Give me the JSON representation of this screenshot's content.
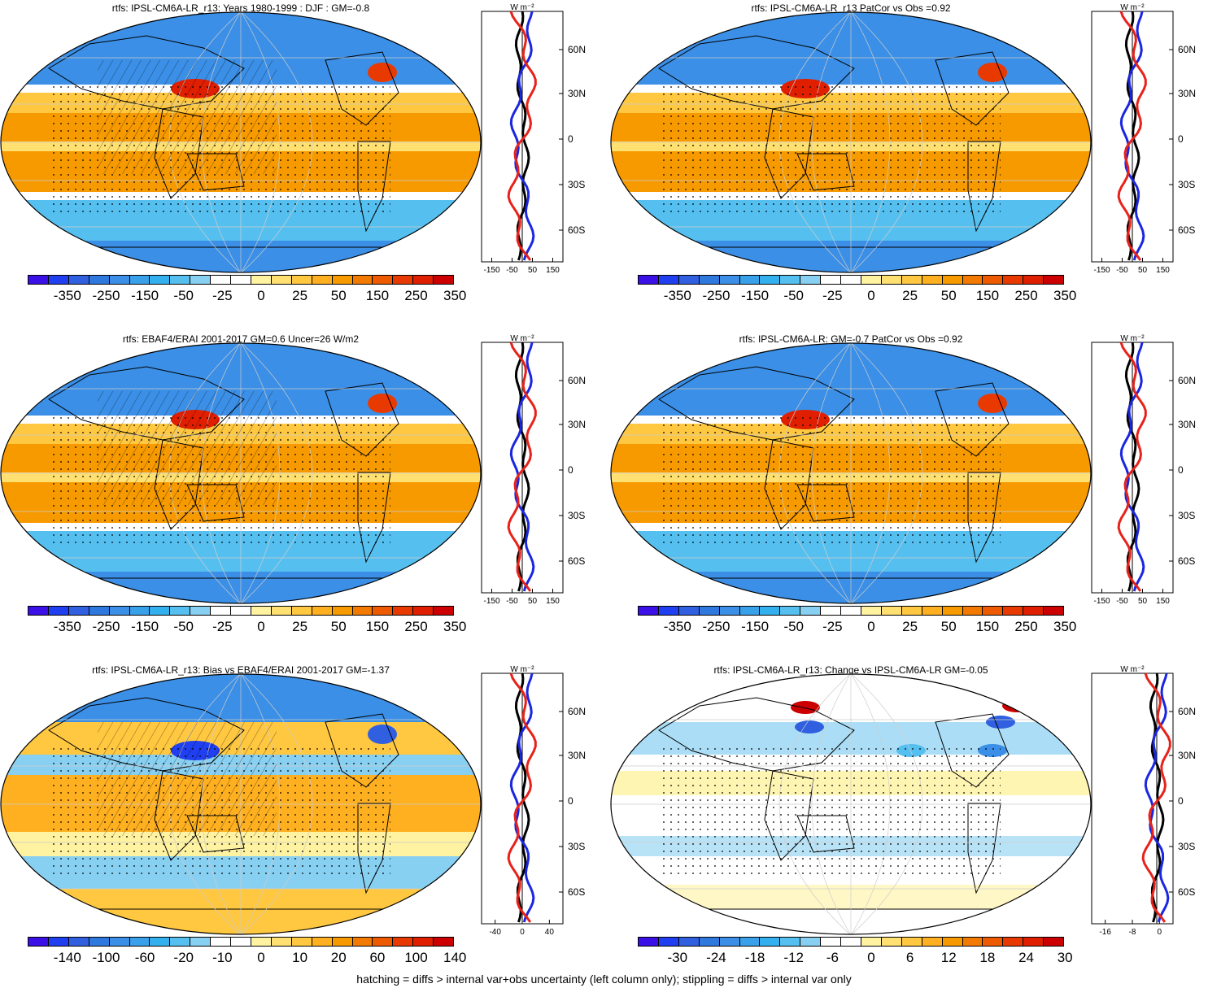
{
  "panels": [
    {
      "title": "rtfs: IPSL-CM6A-LR_r13: Years 1980-1999 : DJF : GM=-0.8",
      "variant": "model",
      "hatched": true,
      "zonal_ticks": [
        "-150",
        "-50",
        "50",
        "150"
      ],
      "zonal_kind": "full"
    },
    {
      "title": "rtfs: IPSL-CM6A-LR_r13 PatCor vs Obs =0.92",
      "variant": "model",
      "hatched": false,
      "zonal_ticks": [
        "-150",
        "-50",
        "50",
        "150"
      ],
      "zonal_kind": "full2"
    },
    {
      "title": "rtfs: EBAF4/ERAI 2001-2017 GM=0.6 Uncer=26 W/m2",
      "variant": "obs",
      "hatched": true,
      "zonal_ticks": [
        "-150",
        "-50",
        "50",
        "150"
      ],
      "zonal_kind": "full"
    },
    {
      "title": "rtfs: IPSL-CM6A-LR: GM=-0.7 PatCor vs Obs =0.92",
      "variant": "model",
      "hatched": false,
      "zonal_ticks": [
        "-150",
        "-50",
        "50",
        "150"
      ],
      "zonal_kind": "full2"
    },
    {
      "title": "rtfs: IPSL-CM6A-LR_r13: Bias vs EBAF4/ERAI 2001-2017 GM=-1.37",
      "variant": "bias",
      "hatched": true,
      "zonal_ticks": [
        "-40",
        "0",
        "40"
      ],
      "zonal_kind": "bias"
    },
    {
      "title": "rtfs: IPSL-CM6A-LR_r13: Change vs IPSL-CM6A-LR GM=-0.05",
      "variant": "change",
      "hatched": false,
      "zonal_ticks": [
        "-16",
        "-8",
        "0"
      ],
      "zonal_kind": "change"
    }
  ],
  "colorbars": [
    {
      "labels": [
        "-350",
        "-250",
        "-150",
        "-50",
        "-25",
        "0",
        "25",
        "50",
        "150",
        "250",
        "350"
      ]
    },
    {
      "labels": [
        "-350",
        "-250",
        "-150",
        "-50",
        "-25",
        "0",
        "25",
        "50",
        "150",
        "250",
        "350"
      ]
    },
    {
      "labels": [
        "-350",
        "-250",
        "-150",
        "-50",
        "-25",
        "0",
        "25",
        "50",
        "150",
        "250",
        "350"
      ]
    },
    {
      "labels": [
        "-350",
        "-250",
        "-150",
        "-50",
        "-25",
        "0",
        "25",
        "50",
        "150",
        "250",
        "350"
      ]
    },
    {
      "labels": [
        "-140",
        "-100",
        "-60",
        "-20",
        "-10",
        "0",
        "10",
        "20",
        "60",
        "100",
        "140"
      ]
    },
    {
      "labels": [
        "-30",
        "-24",
        "-18",
        "-12",
        "-6",
        "0",
        "6",
        "12",
        "18",
        "24",
        "30"
      ]
    }
  ],
  "zonal_lat_labels": [
    "60N",
    "30N",
    "0",
    "30S",
    "60S"
  ],
  "zonal_unit": "W m⁻²",
  "palette": [
    "#3a10e6",
    "#1f3ff0",
    "#3060e0",
    "#2f78de",
    "#3b8fe6",
    "#39a0ea",
    "#33b0ee",
    "#55c0f0",
    "#88d0f2",
    "#ffffff",
    "#ffffff",
    "#fff2a0",
    "#ffe070",
    "#ffc840",
    "#ffb020",
    "#f79a00",
    "#f27a00",
    "#ee5a00",
    "#e83a00",
    "#e01e00",
    "#cc0000"
  ],
  "line_colors": {
    "model": "#e8221a",
    "obs": "#1a26e0",
    "other": "#000000"
  },
  "footer": "hatching = diffs > internal var+obs uncertainty (left column only); stippling = diffs > internal var only"
}
